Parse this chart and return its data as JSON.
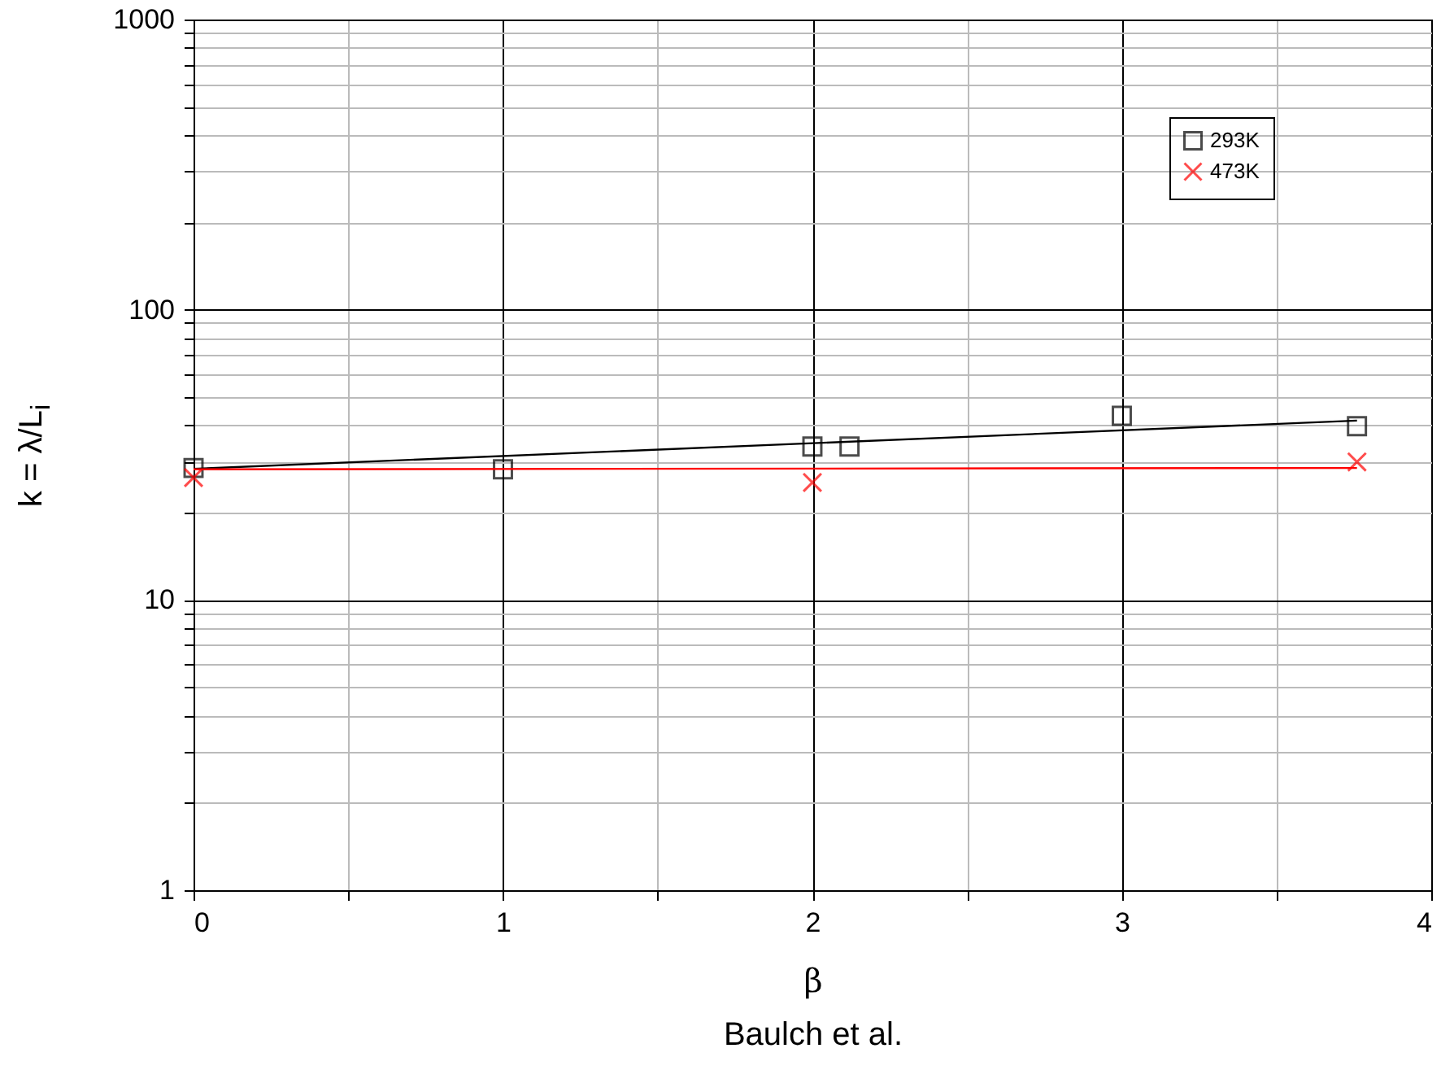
{
  "chart_data": {
    "type": "scatter",
    "xlabel": "β",
    "ylabel": "k = λ/L$_{i}$",
    "annotations": [
      "Baulch et al."
    ],
    "xlim": [
      0,
      4
    ],
    "xticks": [
      0,
      {
        "value": 0.5,
        "label": null
      },
      1,
      {
        "value": 1.5,
        "label": null
      },
      2,
      {
        "value": 2.5,
        "label": null
      },
      3,
      {
        "value": 3.5,
        "label": null
      },
      4
    ],
    "ylim": [
      1,
      1000
    ],
    "log": "y",
    "grid": true,
    "legend": "top right",
    "yticks": [
      1,
      {
        "value": 2,
        "label": null
      },
      {
        "value": 3,
        "label": null
      },
      {
        "value": 4,
        "label": null
      },
      {
        "value": 5,
        "label": null
      },
      {
        "value": 6,
        "label": null
      },
      {
        "value": 7,
        "label": null
      },
      {
        "value": 8,
        "label": null
      },
      {
        "value": 9,
        "label": null
      },
      10,
      {
        "value": 20,
        "label": null
      },
      {
        "value": 30,
        "label": null
      },
      {
        "value": 40,
        "label": null
      },
      {
        "value": 50,
        "label": null
      },
      {
        "value": 60,
        "label": null
      },
      {
        "value": 70,
        "label": null
      },
      {
        "value": 80,
        "label": null
      },
      {
        "value": 90,
        "label": null
      },
      100,
      {
        "value": 200,
        "label": null
      },
      {
        "value": 300,
        "label": null
      },
      {
        "value": 400,
        "label": null
      },
      {
        "value": 500,
        "label": null
      },
      {
        "value": 600,
        "label": null
      },
      {
        "value": 700,
        "label": null
      },
      {
        "value": 800,
        "label": null
      },
      {
        "value": 900,
        "label": null
      },
      1000
    ],
    "series": [
      {
        "type": "line",
        "color": "#000000",
        "x": [
          0,
          3.76
        ],
        "values": [
          28.3,
          41.5
        ]
      },
      {
        "type": "line",
        "color": "#ff0000",
        "x": [
          0,
          3.76
        ],
        "values": [
          28.2,
          28.5
        ]
      },
      {
        "name": "293K",
        "type": "scatter",
        "marker": "square",
        "color": "#000000",
        "x": [
          0,
          1,
          2,
          2.12,
          3,
          3.76
        ],
        "values": [
          28.5,
          28.2,
          33.8,
          33.8,
          43.1,
          39.7
        ]
      },
      {
        "name": "473K",
        "type": "scatter",
        "marker": "cross",
        "color": "#ff0000",
        "x": [
          0,
          2,
          3.76
        ],
        "values": [
          26.4,
          25.4,
          29.9
        ]
      }
    ]
  }
}
